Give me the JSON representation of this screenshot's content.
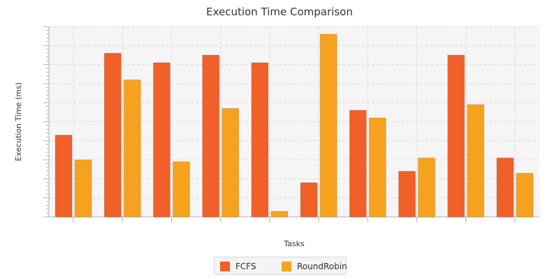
{
  "chart_data": {
    "type": "bar",
    "title": "Execution Time Comparison",
    "xlabel": "Tasks",
    "ylabel": "Execution Time (ms)",
    "categories": [
      "",
      "",
      "",
      "",
      "",
      "",
      "",
      "",
      "",
      ""
    ],
    "ylim": [
      0,
      100
    ],
    "grid": true,
    "legend_position": "bottom-center",
    "series": [
      {
        "name": "FCFS",
        "color": "#f06028",
        "values": [
          43,
          86,
          81,
          85,
          81,
          18,
          56,
          24,
          85,
          31
        ]
      },
      {
        "name": "RoundRobin",
        "color": "#f6a21e",
        "values": [
          30,
          72,
          29,
          57,
          3,
          96,
          52,
          31,
          59,
          23
        ]
      }
    ]
  }
}
